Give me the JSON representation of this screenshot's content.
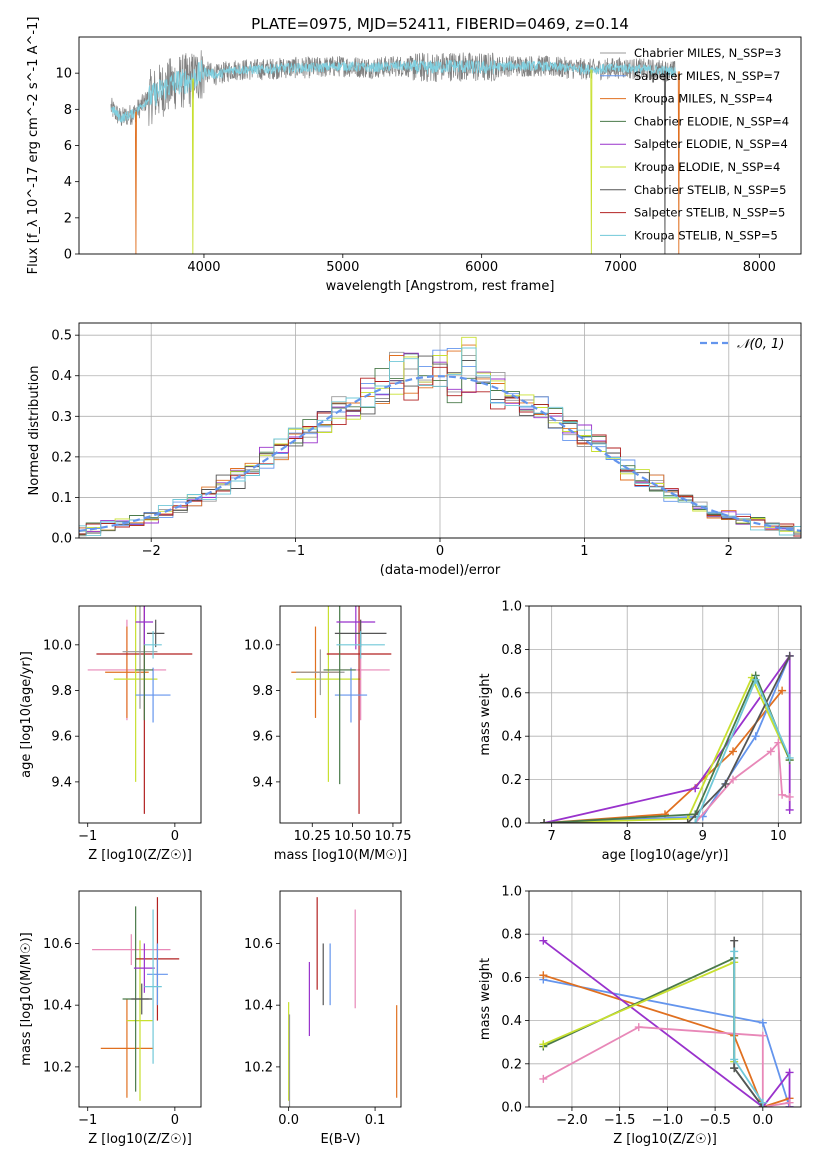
{
  "figure": {
    "title": "PLATE=0975, MJD=52411, FIBERID=0469, z=0.14"
  },
  "colors": {
    "models": [
      "#9a9a9a",
      "#6495ed",
      "#e07020",
      "#4a7a4a",
      "#9932cc",
      "#c8e030",
      "#555555",
      "#b22222",
      "#70c8d8"
    ],
    "extra_series": [
      "#e888b8"
    ],
    "normal_curve": "#6495ed",
    "spectrum_gray": "#808080",
    "spectrum_cyan": "#80d0e0",
    "grid": "#b0b0b0"
  },
  "chart_data": [
    {
      "id": "spectrum",
      "type": "line",
      "title": "PLATE=0975, MJD=52411, FIBERID=0469, z=0.14",
      "xlabel": "wavelength [Angstrom, rest frame]",
      "ylabel": "Flux [f_λ 10^-17 erg cm^-2 s^-1 A^-1]",
      "xlim": [
        3100,
        8300
      ],
      "ylim": [
        0,
        12
      ],
      "xticks": [
        4000,
        5000,
        6000,
        7000,
        8000
      ],
      "yticks": [
        0,
        2,
        4,
        6,
        8,
        10
      ],
      "grid": false,
      "legend_position": "top-right",
      "series": [
        {
          "name": "Chabrier MILES, N_SSP=3"
        },
        {
          "name": "Salpeter MILES, N_SSP=7"
        },
        {
          "name": "Kroupa MILES, N_SSP=4"
        },
        {
          "name": "Chabrier ELODIE, N_SSP=4"
        },
        {
          "name": "Salpeter ELODIE, N_SSP=4"
        },
        {
          "name": "Kroupa ELODIE, N_SSP=4"
        },
        {
          "name": "Chabrier STELIB, N_SSP=5"
        },
        {
          "name": "Salpeter STELIB, N_SSP=5"
        },
        {
          "name": "Kroupa STELIB, N_SSP=5"
        }
      ],
      "continuum": {
        "x": [
          3330,
          3400,
          3500,
          3600,
          3700,
          3800,
          3900,
          4000,
          4100,
          4200,
          4400,
          4600,
          4800,
          5000,
          5200,
          5400,
          5600,
          5800,
          6000,
          6200,
          6400,
          6600,
          6800,
          7000,
          7200,
          7400
        ],
        "y": [
          8.1,
          7.5,
          7.8,
          8.6,
          9.1,
          9.5,
          9.6,
          10.1,
          9.9,
          10.2,
          10.2,
          10.3,
          10.3,
          10.4,
          10.3,
          10.4,
          10.3,
          10.4,
          10.3,
          10.4,
          10.4,
          10.3,
          10.2,
          10.3,
          10.2,
          10.1
        ]
      },
      "dropouts": [
        {
          "x": 3510,
          "y_min": 0,
          "color": "#e07020"
        },
        {
          "x": 3920,
          "y_min": 0,
          "color": "#c8e030"
        },
        {
          "x": 6790,
          "y_min": 0,
          "color": "#c8e030"
        },
        {
          "x": 7320,
          "y_min": 0,
          "color": "#555555"
        },
        {
          "x": 7420,
          "y_min": 0,
          "color": "#e07020"
        }
      ]
    },
    {
      "id": "residuals",
      "type": "histogram",
      "xlabel": "(data-model)/error",
      "ylabel": "Normed distribution",
      "xlim": [
        -2.5,
        2.5
      ],
      "ylim": [
        0,
        0.53
      ],
      "xticks": [
        -2,
        -1,
        0,
        1,
        2
      ],
      "yticks": [
        0.0,
        0.1,
        0.2,
        0.3,
        0.4,
        0.5
      ],
      "grid": true,
      "legend_position": "top-right",
      "legend": "𝒩(0, 1)",
      "bin_width": 0.1
    },
    {
      "id": "age-vs-Z",
      "type": "scatter",
      "xlabel": "Z [log10(Z/Z☉)]",
      "ylabel": "age [log10(age/yr)]",
      "xlim": [
        -1.1,
        0.3
      ],
      "ylim": [
        9.22,
        10.17
      ],
      "xticks": [
        -1,
        0
      ],
      "yticks": [
        9.4,
        9.6,
        9.8,
        10.0
      ],
      "grid": false,
      "points": [
        {
          "x": -0.55,
          "y": 9.89,
          "xerr": 0.45,
          "yerr": 0.22,
          "color": "#e888b8"
        },
        {
          "x": -0.55,
          "y": 9.88,
          "xerr": 0.25,
          "yerr": 0.2,
          "color": "#e07020"
        },
        {
          "x": -0.45,
          "y": 9.85,
          "xerr": 0.25,
          "yerr": 0.45,
          "color": "#c8e030"
        },
        {
          "x": -0.35,
          "y": 9.96,
          "xerr": 0.55,
          "yerr": 0.7,
          "color": "#b22222"
        },
        {
          "x": -0.4,
          "y": 9.97,
          "xerr": 0.2,
          "yerr": 0.25,
          "color": "#9a9a9a"
        },
        {
          "x": -0.25,
          "y": 9.78,
          "xerr": 0.2,
          "yerr": 0.12,
          "color": "#6495ed"
        },
        {
          "x": -0.35,
          "y": 9.89,
          "xerr": 0.1,
          "yerr": 0.22,
          "color": "#4a7a4a"
        },
        {
          "x": -0.35,
          "y": 10.1,
          "xerr": 0.1,
          "yerr": 0.1,
          "color": "#9932cc"
        },
        {
          "x": -0.22,
          "y": 10.05,
          "xerr": 0.1,
          "yerr": 0.06,
          "color": "#555555"
        },
        {
          "x": -0.25,
          "y": 10.0,
          "xerr": 0.1,
          "yerr": 0.06,
          "color": "#70c8d8"
        }
      ]
    },
    {
      "id": "age-vs-mass",
      "type": "scatter",
      "xlabel": "mass [log10(M/M☉)]",
      "ylabel": "",
      "xlim": [
        10.05,
        10.8
      ],
      "ylim": [
        9.22,
        10.17
      ],
      "xticks": [
        10.25,
        10.5,
        10.75
      ],
      "tick_labels": [
        "10.25",
        "10.50",
        "10.75"
      ],
      "yticks": [
        9.4,
        9.6,
        9.8,
        10.0
      ],
      "grid": false,
      "points": [
        {
          "x": 10.55,
          "y": 9.89,
          "xerr": 0.18,
          "yerr": 0.22,
          "color": "#e888b8"
        },
        {
          "x": 10.27,
          "y": 9.88,
          "xerr": 0.15,
          "yerr": 0.2,
          "color": "#e07020"
        },
        {
          "x": 10.35,
          "y": 9.85,
          "xerr": 0.2,
          "yerr": 0.45,
          "color": "#c8e030"
        },
        {
          "x": 10.54,
          "y": 9.96,
          "xerr": 0.2,
          "yerr": 0.7,
          "color": "#b22222"
        },
        {
          "x": 10.3,
          "y": 9.88,
          "xerr": 0.15,
          "yerr": 0.1,
          "color": "#9a9a9a"
        },
        {
          "x": 10.49,
          "y": 9.78,
          "xerr": 0.1,
          "yerr": 0.12,
          "color": "#6495ed"
        },
        {
          "x": 10.42,
          "y": 9.89,
          "xerr": 0.1,
          "yerr": 0.5,
          "color": "#4a7a4a"
        },
        {
          "x": 10.52,
          "y": 10.1,
          "xerr": 0.12,
          "yerr": 0.12,
          "color": "#9932cc"
        },
        {
          "x": 10.55,
          "y": 10.05,
          "xerr": 0.16,
          "yerr": 0.06,
          "color": "#555555"
        },
        {
          "x": 10.55,
          "y": 10.0,
          "xerr": 0.15,
          "yerr": 0.06,
          "color": "#70c8d8"
        }
      ]
    },
    {
      "id": "weight-vs-age",
      "type": "line",
      "xlabel": "age  [log10(age/yr)]",
      "ylabel": "mass weight",
      "xlim": [
        6.7,
        10.3
      ],
      "ylim": [
        0,
        1
      ],
      "xticks": [
        7,
        8,
        9,
        10
      ],
      "yticks": [
        0.0,
        0.2,
        0.4,
        0.6,
        0.8,
        1.0
      ],
      "grid": true,
      "series": [
        {
          "color": "#e07020",
          "x": [
            6.9,
            8.5,
            9.4,
            10.05
          ],
          "y": [
            0.0,
            0.04,
            0.33,
            0.61
          ]
        },
        {
          "color": "#6495ed",
          "x": [
            6.9,
            9.0,
            9.7,
            10.15
          ],
          "y": [
            0.0,
            0.03,
            0.4,
            0.77
          ]
        },
        {
          "color": "#9932cc",
          "x": [
            6.9,
            8.9,
            10.15,
            10.15
          ],
          "y": [
            0.0,
            0.16,
            0.77,
            0.06
          ]
        },
        {
          "color": "#e888b8",
          "x": [
            8.9,
            9.4,
            9.9,
            10.0,
            10.05,
            10.15
          ],
          "y": [
            0.0,
            0.2,
            0.33,
            0.37,
            0.13,
            0.12
          ]
        },
        {
          "color": "#c8e030",
          "x": [
            6.9,
            8.8,
            9.65,
            10.15
          ],
          "y": [
            0.0,
            0.02,
            0.67,
            0.29
          ]
        },
        {
          "color": "#4a7a4a",
          "x": [
            6.9,
            8.9,
            9.7,
            10.15
          ],
          "y": [
            0.0,
            0.04,
            0.68,
            0.29
          ]
        },
        {
          "color": "#555555",
          "x": [
            6.9,
            8.8,
            9.3,
            10.15
          ],
          "y": [
            0.0,
            0.0,
            0.18,
            0.77
          ]
        },
        {
          "color": "#70c8d8",
          "x": [
            8.9,
            9.7,
            10.15
          ],
          "y": [
            0.0,
            0.66,
            0.3
          ]
        }
      ]
    },
    {
      "id": "mass-vs-Z",
      "type": "scatter",
      "xlabel": "Z [log10(Z/Z☉)]",
      "ylabel": "mass [log10(M/M☉)]",
      "xlim": [
        -1.1,
        0.3
      ],
      "ylim": [
        10.07,
        10.77
      ],
      "xticks": [
        -1,
        0
      ],
      "yticks": [
        10.2,
        10.4,
        10.6
      ],
      "grid": false,
      "points": [
        {
          "x": -0.5,
          "y": 10.58,
          "xerr": 0.45,
          "yerr": 0.05,
          "color": "#e888b8"
        },
        {
          "x": -0.55,
          "y": 10.26,
          "xerr": 0.3,
          "yerr": 0.16,
          "color": "#e07020"
        },
        {
          "x": -0.4,
          "y": 10.35,
          "xerr": 0.15,
          "yerr": 0.26,
          "color": "#c8e030"
        },
        {
          "x": -0.2,
          "y": 10.55,
          "xerr": 0.25,
          "yerr": 0.2,
          "color": "#b22222"
        },
        {
          "x": -0.45,
          "y": 10.42,
          "xerr": 0.15,
          "yerr": 0.3,
          "color": "#4a7a4a"
        },
        {
          "x": -0.2,
          "y": 10.5,
          "xerr": 0.12,
          "yerr": 0.1,
          "color": "#6495ed"
        },
        {
          "x": -0.35,
          "y": 10.52,
          "xerr": 0.12,
          "yerr": 0.08,
          "color": "#9932cc"
        },
        {
          "x": -0.25,
          "y": 10.46,
          "xerr": 0.1,
          "yerr": 0.25,
          "color": "#70c8d8"
        },
        {
          "x": -0.38,
          "y": 10.42,
          "xerr": 0.12,
          "yerr": 0.05,
          "color": "#555555"
        }
      ]
    },
    {
      "id": "mass-vs-EBV",
      "type": "scatter",
      "xlabel": "E(B-V)",
      "ylabel": "",
      "xlim": [
        -0.01,
        0.13
      ],
      "ylim": [
        10.07,
        10.77
      ],
      "xticks": [
        0.0,
        0.1
      ],
      "yticks": [
        10.2,
        10.4,
        10.6
      ],
      "grid": false,
      "points": [
        {
          "x": 0.0,
          "y": 10.25,
          "yerr": 0.16,
          "color": "#c8e030"
        },
        {
          "x": 0.001,
          "y": 10.22,
          "yerr": 0.15,
          "color": "#9a9a9a"
        },
        {
          "x": 0.024,
          "y": 10.42,
          "yerr": 0.12,
          "color": "#9932cc"
        },
        {
          "x": 0.033,
          "y": 10.6,
          "yerr": 0.15,
          "color": "#b22222"
        },
        {
          "x": 0.04,
          "y": 10.5,
          "yerr": 0.1,
          "color": "#555555"
        },
        {
          "x": 0.048,
          "y": 10.5,
          "yerr": 0.1,
          "color": "#6495ed"
        },
        {
          "x": 0.077,
          "y": 10.55,
          "yerr": 0.16,
          "color": "#e888b8"
        },
        {
          "x": 0.125,
          "y": 10.25,
          "yerr": 0.15,
          "color": "#e07020"
        }
      ]
    },
    {
      "id": "weight-vs-Z",
      "type": "line",
      "xlabel": "Z [log10(Z/Z☉)]",
      "ylabel": "mass weight",
      "xlim": [
        -2.45,
        0.4
      ],
      "ylim": [
        0,
        1
      ],
      "xticks": [
        -2.0,
        -1.5,
        -1.0,
        -0.5,
        0.0
      ],
      "yticks": [
        0.0,
        0.2,
        0.4,
        0.6,
        0.8,
        1.0
      ],
      "grid": true,
      "series": [
        {
          "color": "#6495ed",
          "x": [
            -2.3,
            0.0,
            0.28
          ],
          "y": [
            0.59,
            0.39,
            0.0
          ]
        },
        {
          "color": "#e07020",
          "x": [
            -2.3,
            -0.3,
            0.0,
            0.28
          ],
          "y": [
            0.61,
            0.33,
            0.0,
            0.04
          ]
        },
        {
          "color": "#9932cc",
          "x": [
            -2.3,
            0.0,
            0.28,
            0.28
          ],
          "y": [
            0.77,
            0.0,
            0.16,
            0.0
          ]
        },
        {
          "color": "#e888b8",
          "x": [
            -2.3,
            -1.3,
            0.0,
            0.0,
            0.28
          ],
          "y": [
            0.13,
            0.37,
            0.33,
            0.0,
            0.02
          ]
        },
        {
          "color": "#4a7a4a",
          "x": [
            -2.3,
            -0.3,
            -0.3,
            0.0
          ],
          "y": [
            0.28,
            0.69,
            0.18,
            0.0
          ]
        },
        {
          "color": "#c8e030",
          "x": [
            -2.3,
            -0.3,
            -0.3
          ],
          "y": [
            0.29,
            0.67,
            0.21
          ]
        },
        {
          "color": "#555555",
          "x": [
            -0.3,
            -0.3,
            0.0
          ],
          "y": [
            0.77,
            0.18,
            0.0
          ]
        },
        {
          "color": "#70c8d8",
          "x": [
            -0.3,
            -0.3,
            0.0
          ],
          "y": [
            0.72,
            0.22,
            0.02
          ]
        }
      ]
    }
  ]
}
